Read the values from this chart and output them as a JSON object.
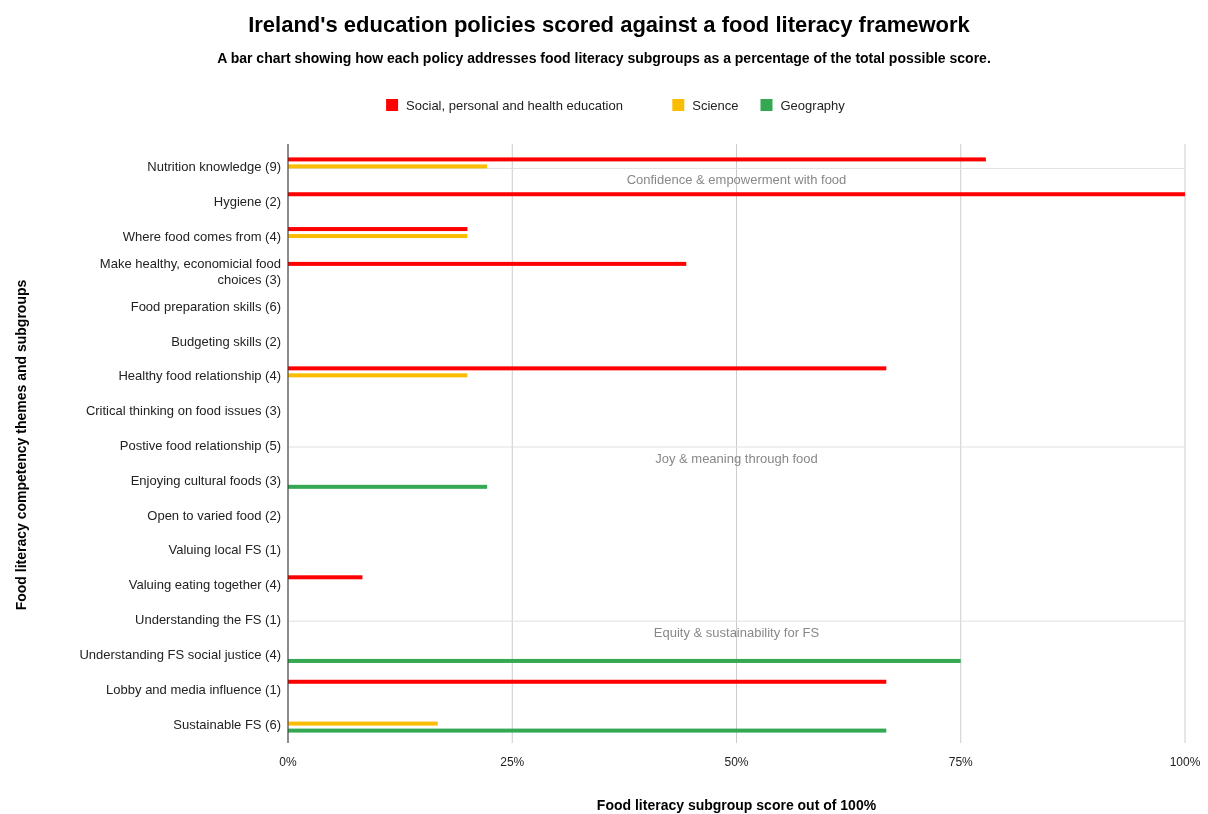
{
  "chart_data": {
    "type": "bar",
    "orientation": "horizontal",
    "title": "Ireland's education policies scored against a food literacy framework",
    "subtitle": "A bar chart showing how each policy addresses food literacy subgroups as a percentage of the total possible score.",
    "xlabel": "Food literacy subgroup score out of 100%",
    "ylabel": "Food literacy competency themes and subgroups",
    "categories": [
      "Nutrition knowledge (9)",
      "Hygiene (2)",
      "Where food comes from (4)",
      "Make healthy, economicial food choices (3)",
      "Food preparation skills (6)",
      "Budgeting skills (2)",
      "Healthy food relationship (4)",
      "Critical thinking on food issues (3)",
      "Postive food relationship (5)",
      "Enjoying cultural foods (3)",
      "Open to varied food (2)",
      "Valuing local FS (1)",
      "Valuing eating together (4)",
      "Understanding the FS (1)",
      "Understanding FS social justice (4)",
      "Lobby and media influence (1)",
      "Sustainable FS (6)"
    ],
    "series": [
      {
        "name": "Social, personal and health education",
        "color": "#ff0000",
        "values": [
          77.8,
          100,
          20,
          44.4,
          null,
          null,
          66.7,
          null,
          null,
          null,
          null,
          null,
          8.3,
          null,
          null,
          66.7,
          null
        ]
      },
      {
        "name": "Science",
        "color": "#fbbc04",
        "values": [
          22.2,
          null,
          20,
          null,
          null,
          null,
          20,
          null,
          null,
          null,
          null,
          null,
          null,
          null,
          null,
          null,
          16.7
        ]
      },
      {
        "name": "Geography",
        "color": "#34a853",
        "values": [
          null,
          null,
          null,
          null,
          null,
          null,
          null,
          null,
          null,
          22.2,
          null,
          null,
          null,
          null,
          75,
          null,
          66.7
        ]
      }
    ],
    "xlim": [
      0,
      100
    ],
    "xticks": [
      {
        "value": 0,
        "label": "0%"
      },
      {
        "value": 25,
        "label": "25%"
      },
      {
        "value": 50,
        "label": "50%"
      },
      {
        "value": 75,
        "label": "75%"
      },
      {
        "value": 100,
        "label": "100%"
      }
    ],
    "grid": "x",
    "legend": "top",
    "ref_lines": [
      {
        "axis": "y",
        "value": "Nutrition knowledge (9)",
        "label": "Confidence & empowerment with food",
        "color": "#e0e0e0"
      },
      {
        "axis": "y",
        "value": "Postive food relationship (5)",
        "label": "Joy & meaning through food",
        "color": "#e0e0e0"
      },
      {
        "axis": "y",
        "value": "Understanding the FS (1)",
        "label": "Equity & sustainability for FS",
        "color": "#e0e0e0"
      }
    ]
  }
}
